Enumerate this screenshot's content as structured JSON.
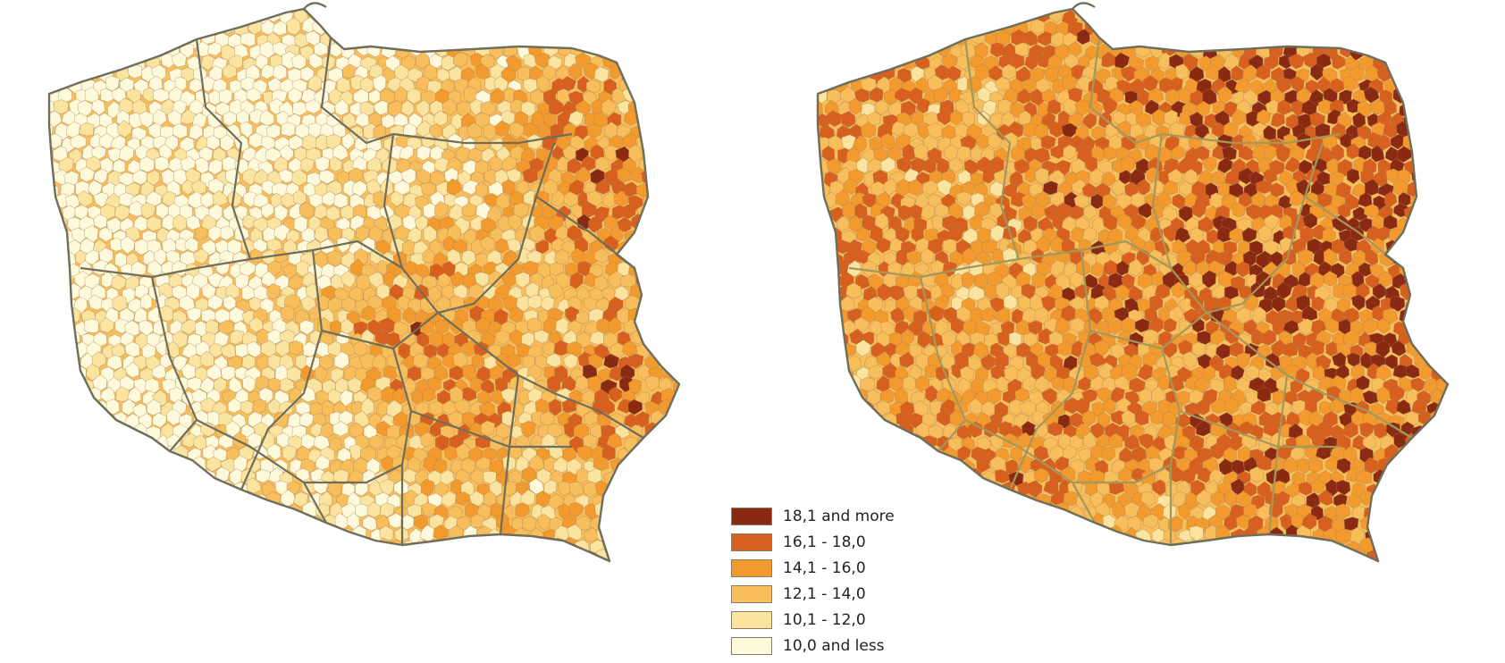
{
  "palette": {
    "c1": "#8b2a12",
    "c2": "#d8601f",
    "c3": "#f29a2e",
    "c4": "#f8be5c",
    "c5": "#fbe3a0",
    "c6": "#fff9dc",
    "border": "#6e6e5a",
    "region_border_right": "#a2985a"
  },
  "legend": {
    "items": [
      {
        "label": "18,1 and more",
        "color": "#8b2a12"
      },
      {
        "label": "16,1 - 18,0",
        "color": "#d8601f"
      },
      {
        "label": "14,1 - 16,0",
        "color": "#f29a2e"
      },
      {
        "label": "12,1 - 14,0",
        "color": "#f8be5c"
      },
      {
        "label": "10,1 - 12,0",
        "color": "#fbe3a0"
      },
      {
        "label": "10,0 and less",
        "color": "#fff9dc"
      }
    ]
  }
}
